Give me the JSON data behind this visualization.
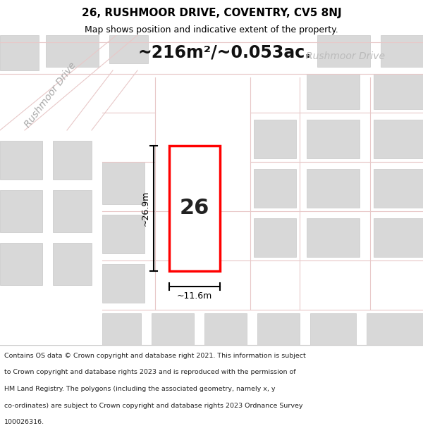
{
  "title_line1": "26, RUSHMOOR DRIVE, COVENTRY, CV5 8NJ",
  "title_line2": "Map shows position and indicative extent of the property.",
  "area_label": "~216m²/~0.053ac.",
  "street_label_diag": "Rushmoor Drive",
  "street_label_horiz": "Rushmoor Drive",
  "plot_number": "26",
  "dim_height": "~26.9m",
  "dim_width": "~11.6m",
  "footer_lines": [
    "Contains OS data © Crown copyright and database right 2021. This information is subject",
    "to Crown copyright and database rights 2023 and is reproduced with the permission of",
    "HM Land Registry. The polygons (including the associated geometry, namely x, y",
    "co-ordinates) are subject to Crown copyright and database rights 2023 Ordnance Survey",
    "100026316."
  ],
  "map_bg": "#f0ebe8",
  "plot_fill": "#ffffff",
  "plot_edge": "#ff0000",
  "building_fill": "#d8d8d8",
  "building_edge": "#c8c8c8",
  "road_line_color": "#e8c8c8",
  "dim_line_color": "#000000",
  "label_color_gray": "#aaaaaa",
  "label_color_light": "#bbbbbb"
}
